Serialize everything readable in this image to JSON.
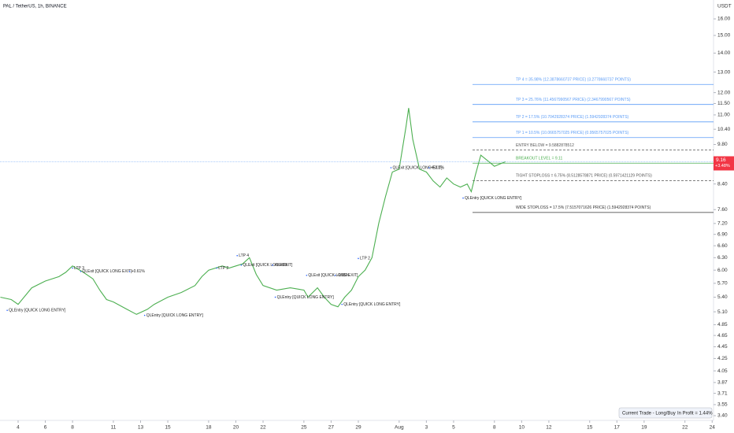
{
  "chart_data": {
    "type": "line",
    "title": "PAL / TetherUS, 1h, BINANCE",
    "y_axis_unit": "USDT",
    "log_scale": true,
    "color": "#4caf50",
    "x": [
      2.7,
      3.5,
      4,
      5,
      6,
      7,
      7.5,
      8,
      8.8,
      9.5,
      10,
      10.5,
      11,
      12,
      12.7,
      13.5,
      14,
      15,
      16,
      17,
      17.5,
      18,
      19,
      19.5,
      20,
      20.5,
      21,
      21.5,
      22,
      23,
      24,
      25,
      25.3,
      26,
      26.5,
      27,
      27.5,
      28,
      28.5,
      29,
      29.5,
      30,
      30.5,
      31,
      31.5,
      32,
      32.5,
      32.7,
      33,
      33.5,
      34,
      34.5,
      35,
      35.5,
      36,
      36.5,
      37,
      37.3,
      37.6,
      38,
      38.5,
      39,
      39.5,
      39.8
    ],
    "values": [
      5.4,
      5.35,
      5.25,
      5.6,
      5.75,
      5.85,
      5.95,
      6.1,
      5.95,
      5.8,
      5.55,
      5.35,
      5.3,
      5.15,
      5.05,
      5.15,
      5.25,
      5.4,
      5.5,
      5.65,
      5.85,
      6.0,
      6.1,
      6.05,
      6.1,
      6.15,
      6.3,
      5.9,
      5.65,
      5.55,
      5.6,
      5.55,
      5.4,
      5.6,
      5.4,
      5.25,
      5.2,
      5.4,
      5.55,
      5.85,
      6.0,
      6.3,
      7.2,
      8.0,
      8.8,
      8.9,
      10.5,
      11.3,
      10.0,
      8.9,
      8.8,
      8.5,
      8.3,
      8.6,
      8.4,
      8.3,
      8.4,
      8.15,
      8.7,
      9.4,
      9.2,
      9.0,
      9.1,
      9.16
    ],
    "xlim": [
      2.67,
      55.1
    ],
    "ylim": [
      3.4,
      16
    ],
    "xticks": [
      4,
      6,
      8,
      11,
      13,
      15,
      18,
      20,
      22,
      25,
      27,
      29,
      {
        "value": 32,
        "label": "Aug"
      },
      {
        "value": 34,
        "label": "3"
      },
      {
        "value": 36,
        "label": "5"
      },
      {
        "value": 39,
        "label": "8"
      },
      {
        "value": 41,
        "label": "10"
      },
      {
        "value": 43,
        "label": "12"
      },
      {
        "value": 46,
        "label": "15"
      },
      {
        "value": 48,
        "label": "17"
      },
      {
        "value": 50,
        "label": "19"
      },
      {
        "value": 53,
        "label": "22"
      },
      {
        "value": 55,
        "label": "24"
      }
    ],
    "yticks": [
      {
        "value": 16,
        "label": "16.00"
      },
      {
        "value": 15,
        "label": "15.00"
      },
      {
        "value": 14,
        "label": "14.00"
      },
      {
        "value": 13,
        "label": "13.00"
      },
      {
        "value": 12,
        "label": "12.00"
      },
      {
        "value": 11.5,
        "label": "11.50"
      },
      {
        "value": 11,
        "label": "11.00"
      },
      {
        "value": 10.4,
        "label": "10.40"
      },
      {
        "value": 9.8,
        "label": "9.80"
      },
      {
        "value": 8.4,
        "label": "8.40"
      },
      {
        "value": 7.6,
        "label": "7.60"
      },
      {
        "value": 7.2,
        "label": "7.20"
      },
      {
        "value": 6.9,
        "label": "6.90"
      },
      {
        "value": 6.6,
        "label": "6.60"
      },
      {
        "value": 6.3,
        "label": "6.30"
      },
      {
        "value": 6,
        "label": "6.00"
      },
      {
        "value": 5.7,
        "label": "5.70"
      },
      {
        "value": 5.4,
        "label": "5.40"
      },
      {
        "value": 5.1,
        "label": "5.10"
      },
      4.85,
      4.65,
      4.45,
      4.25,
      4.05,
      3.87,
      3.71,
      3.55,
      {
        "value": 3.4,
        "label": "3.40"
      }
    ],
    "levels": [
      {
        "label": "TP 4 = 35.98% (12.3878660737 PRICE) (3.2778660737 POINTS)",
        "value": 12.3878660737,
        "color": "#5b9cf6",
        "style": "solid"
      },
      {
        "label": "TP 3 = 25.76% (11.4567990567 PRICE) (2.3467990567 POINTS)",
        "value": 11.4567990567,
        "color": "#5b9cf6",
        "style": "solid"
      },
      {
        "label": "TP 2 = 17.5% (10.7042928374 PRICE) (1.5942928374 POINTS)",
        "value": 10.7042928374,
        "color": "#5b9cf6",
        "style": "solid"
      },
      {
        "label": "TP 1 = 10.5% (10.0665757025 PRICE) (0.9565757025 POINTS)",
        "value": 10.0665757025,
        "color": "#5b9cf6",
        "style": "solid"
      },
      {
        "label": "ENTRY BELOW = 9.5882878512",
        "value": 9.5882878512,
        "color": "#555555",
        "style": "dashed"
      },
      {
        "label": "BREAKOUT LEVEL = 9.11",
        "value": 9.11,
        "color": "#4caf50",
        "style": "solid"
      },
      {
        "label": "TIGHT STOPLOSS = 6.75% (8.5128578871 PRICE) (0.5971421129 POINTS)",
        "value": 8.5128578871,
        "color": "#555555",
        "style": "dashed"
      },
      {
        "label": "WIDE STOPLOSS = 17.5% (7.5157071626 PRICE) (1.5942928374 POINTS)",
        "value": 7.5157071626,
        "color": "#333333",
        "style": "solid"
      }
    ],
    "annotations": [
      {
        "text": "QLEntry [QUICK LONG ENTRY]",
        "x": 3.2,
        "y": 5.13
      },
      {
        "text": "LTP 3",
        "x": 8.0,
        "y": 6.05
      },
      {
        "text": "QLExit [QUICK LONG EXIT]",
        "x": 8.6,
        "y": 5.97
      },
      {
        "text": "+0.61%",
        "x": 12.2,
        "y": 5.97
      },
      {
        "text": "QLEntry [QUICK LONG ENTRY]",
        "x": 13.3,
        "y": 5.03
      },
      {
        "text": "LTP 2",
        "x": 18.6,
        "y": 6.05
      },
      {
        "text": "LTP 4",
        "x": 20.1,
        "y": 6.35
      },
      {
        "text": "QLExit [QUICK LONG EXIT]",
        "x": 20.4,
        "y": 6.12
      },
      {
        "text": "+3.48%",
        "x": 22.7,
        "y": 6.12
      },
      {
        "text": "QLEntry [QUICK LONG ENTRY]",
        "x": 22.9,
        "y": 5.4
      },
      {
        "text": "QLExit [QUICK LONG EXIT]",
        "x": 25.2,
        "y": 5.88
      },
      {
        "text": "-9.05%",
        "x": 27.3,
        "y": 5.88
      },
      {
        "text": "QLEntry [QUICK LONG ENTRY]",
        "x": 27.8,
        "y": 5.25
      },
      {
        "text": "LTP 2",
        "x": 29.0,
        "y": 6.28
      },
      {
        "text": "QLExit [QUICK LONG EXIT]",
        "x": 31.4,
        "y": 8.95
      },
      {
        "text": "+52.1%",
        "x": 34.2,
        "y": 8.95
      },
      {
        "text": "QLEntry [QUICK LONG ENTRY]",
        "x": 36.7,
        "y": 7.95
      }
    ],
    "last_price": 9.16,
    "last_change": "+3.48%",
    "status": [
      "Current Trade - Long/Buy",
      "In Profit = 1.44%"
    ]
  }
}
